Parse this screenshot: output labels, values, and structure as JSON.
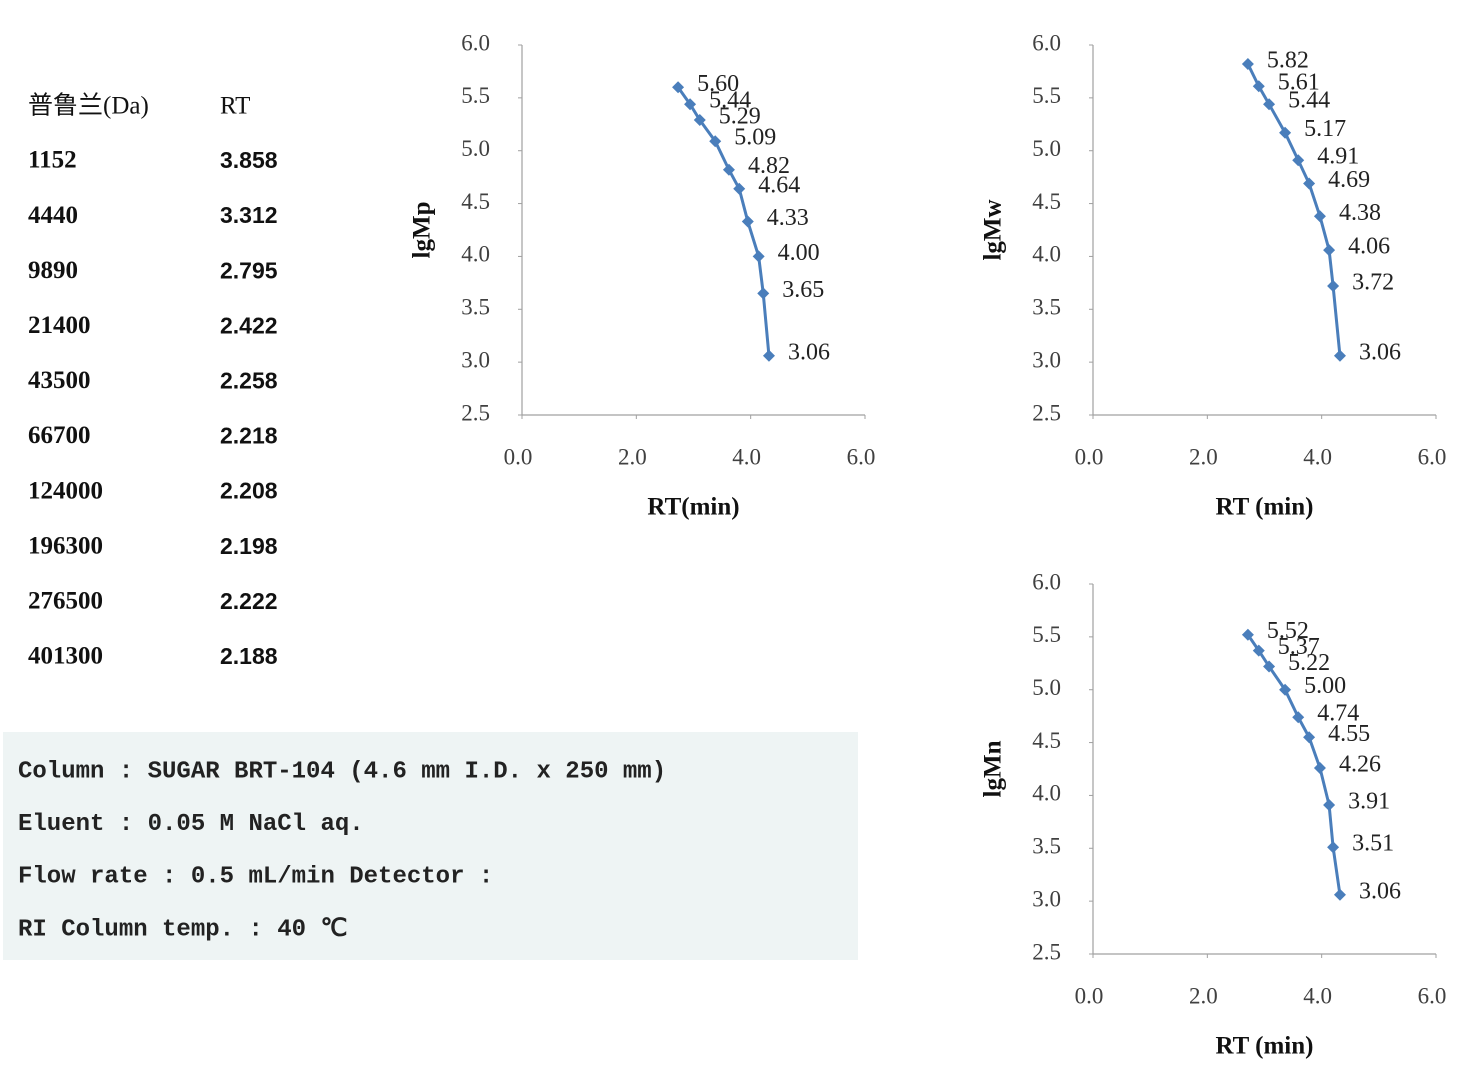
{
  "table": {
    "header": [
      "普鲁兰(Da)",
      "RT"
    ],
    "rows": [
      [
        1152,
        3.858
      ],
      [
        4440,
        3.312
      ],
      [
        9890,
        2.795
      ],
      [
        21400,
        2.422
      ],
      [
        43500,
        2.258
      ],
      [
        66700,
        2.218
      ],
      [
        124000,
        2.208
      ],
      [
        196300,
        2.198
      ],
      [
        276500,
        2.222
      ],
      [
        401300,
        2.188
      ]
    ]
  },
  "conditions": {
    "lines": [
      "Column : SUGAR BRT-104 (4.6 mm I.D. x 250 mm)",
      "Eluent : 0.05 M NaCl aq.",
      "Flow rate : 0.5 mL/min Detector :",
      "RI Column temp. : 40 ℃"
    ]
  },
  "chart_data": [
    {
      "type": "line",
      "xlabel": "RT(min)",
      "ylabel": "lgMp",
      "color": "#4a7ebb",
      "x": [
        2.73,
        2.94,
        3.11,
        3.38,
        3.62,
        3.8,
        3.95,
        4.14,
        4.22,
        4.32
      ],
      "values": [
        5.6,
        5.44,
        5.29,
        5.09,
        4.82,
        4.64,
        4.33,
        4,
        3.65,
        3.06
      ],
      "value_labels": [
        "5.60",
        "5.44",
        "5.29",
        "5.09",
        "4.82",
        "4.64",
        "4.33",
        "4.00",
        "3.65",
        "3.06"
      ],
      "xlim": [
        0,
        6
      ],
      "ylim": [
        2.5,
        6
      ],
      "xticks": [
        {
          "value": 0,
          "label": "0.0"
        },
        {
          "value": 2,
          "label": "2.0"
        },
        {
          "value": 4,
          "label": "4.0"
        },
        {
          "value": 6,
          "label": "6.0"
        }
      ],
      "yticks": [
        {
          "value": 2.5,
          "label": "2.5"
        },
        {
          "value": 3,
          "label": "3.0"
        },
        {
          "value": 3.5,
          "label": "3.5"
        },
        {
          "value": 4,
          "label": "4.0"
        },
        {
          "value": 4.5,
          "label": "4.5"
        },
        {
          "value": 5,
          "label": "5.0"
        },
        {
          "value": 5.5,
          "label": "5.5"
        },
        {
          "value": 6,
          "label": "6.0"
        }
      ]
    },
    {
      "type": "line",
      "xlabel": "RT (min)",
      "ylabel": "lgMw",
      "color": "#4a7ebb",
      "x": [
        2.71,
        2.9,
        3.08,
        3.36,
        3.59,
        3.78,
        3.97,
        4.13,
        4.2,
        4.32
      ],
      "values": [
        5.82,
        5.61,
        5.44,
        5.17,
        4.91,
        4.69,
        4.38,
        4.06,
        3.72,
        3.06
      ],
      "value_labels": [
        "5.82",
        "5.61",
        "5.44",
        "5.17",
        "4.91",
        "4.69",
        "4.38",
        "4.06",
        "3.72",
        "3.06"
      ],
      "xlim": [
        0,
        6
      ],
      "ylim": [
        2.5,
        6
      ],
      "xticks": [
        {
          "value": 0,
          "label": "0.0"
        },
        {
          "value": 2,
          "label": "2.0"
        },
        {
          "value": 4,
          "label": "4.0"
        },
        {
          "value": 6,
          "label": "6.0"
        }
      ],
      "yticks": [
        {
          "value": 2.5,
          "label": "2.5"
        },
        {
          "value": 3,
          "label": "3.0"
        },
        {
          "value": 3.5,
          "label": "3.5"
        },
        {
          "value": 4,
          "label": "4.0"
        },
        {
          "value": 4.5,
          "label": "4.5"
        },
        {
          "value": 5,
          "label": "5.0"
        },
        {
          "value": 5.5,
          "label": "5.5"
        },
        {
          "value": 6,
          "label": "6.0"
        }
      ]
    },
    {
      "type": "line",
      "xlabel": "RT (min)",
      "ylabel": "lgMn",
      "color": "#4a7ebb",
      "x": [
        2.71,
        2.9,
        3.08,
        3.36,
        3.59,
        3.78,
        3.97,
        4.13,
        4.2,
        4.32
      ],
      "values": [
        5.52,
        5.37,
        5.22,
        5,
        4.74,
        4.55,
        4.26,
        3.91,
        3.51,
        3.06
      ],
      "value_labels": [
        "5.52",
        "5.37",
        "5.22",
        "5.00",
        "4.74",
        "4.55",
        "4.26",
        "3.91",
        "3.51",
        "3.06"
      ],
      "xlim": [
        0,
        6
      ],
      "ylim": [
        2.5,
        6
      ],
      "xticks": [
        {
          "value": 0,
          "label": "0.0"
        },
        {
          "value": 2,
          "label": "2.0"
        },
        {
          "value": 4,
          "label": "4.0"
        },
        {
          "value": 6,
          "label": "6.0"
        }
      ],
      "yticks": [
        {
          "value": 2.5,
          "label": "2.5"
        },
        {
          "value": 3,
          "label": "3.0"
        },
        {
          "value": 3.5,
          "label": "3.5"
        },
        {
          "value": 4,
          "label": "4.0"
        },
        {
          "value": 4.5,
          "label": "4.5"
        },
        {
          "value": 5,
          "label": "5.0"
        },
        {
          "value": 5.5,
          "label": "5.5"
        },
        {
          "value": 6,
          "label": "6.0"
        }
      ]
    }
  ]
}
